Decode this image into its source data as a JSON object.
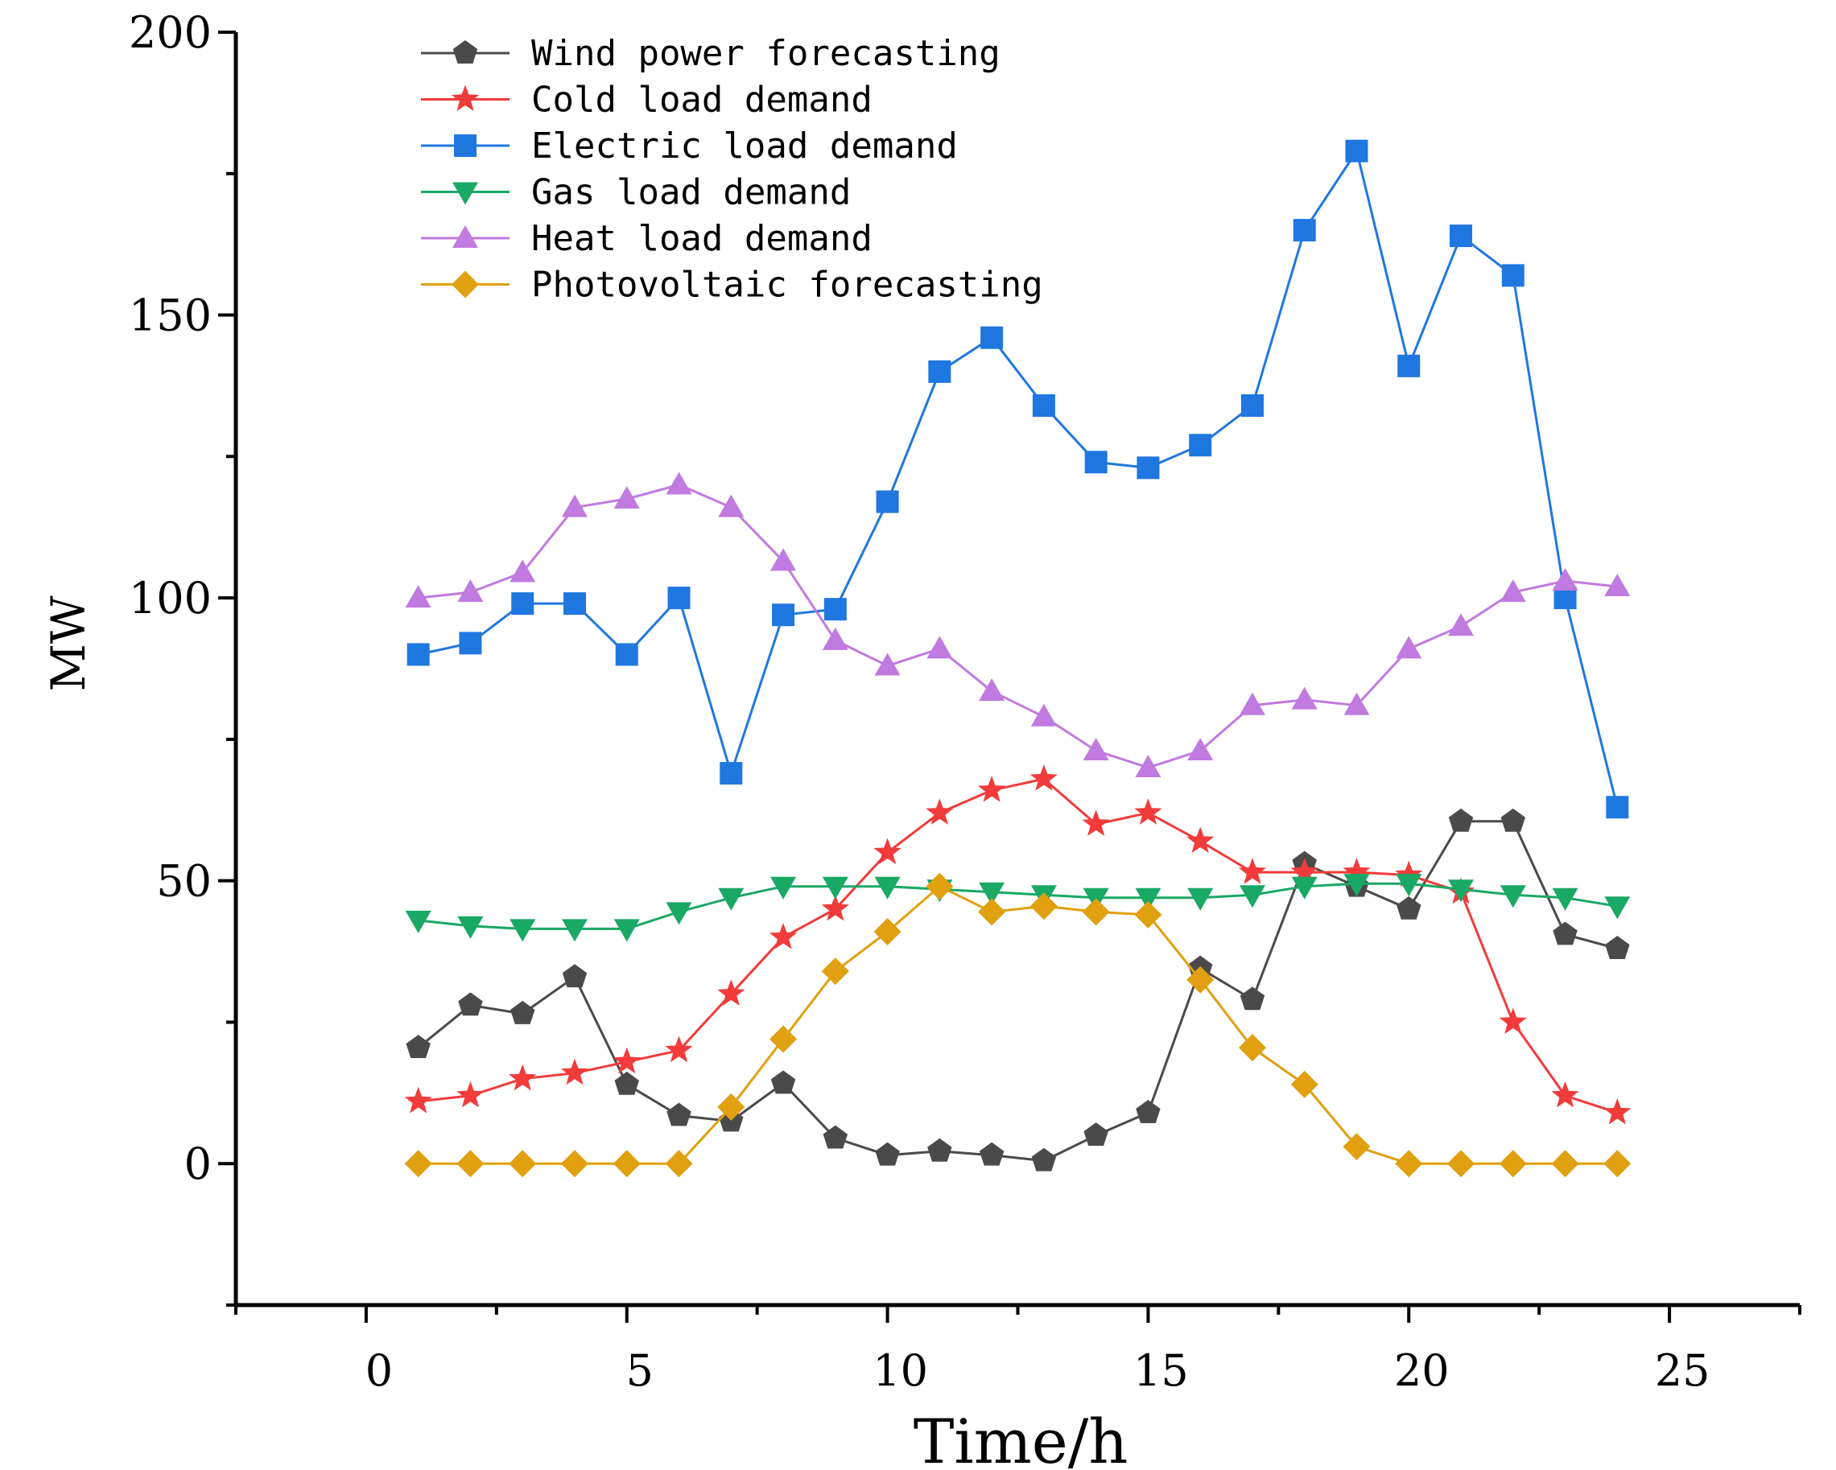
{
  "chart_data": {
    "type": "line",
    "title": "",
    "xlabel": "Time/h",
    "ylabel": "MW",
    "xlim": [
      -2.5,
      27.5
    ],
    "ylim": [
      -25,
      200
    ],
    "xticks": [
      0,
      5,
      10,
      15,
      20,
      25
    ],
    "yticks": [
      0,
      50,
      100,
      150,
      200
    ],
    "x_tick_labels": [
      "0",
      "5",
      "10",
      "15",
      "20",
      "25"
    ],
    "y_tick_labels": [
      "0",
      "50",
      "100",
      "150",
      "200"
    ],
    "grid": false,
    "legend_position": "top-left",
    "x": [
      1,
      2,
      3,
      4,
      5,
      6,
      7,
      8,
      9,
      10,
      11,
      12,
      13,
      14,
      15,
      16,
      17,
      18,
      19,
      20,
      21,
      22,
      23,
      24
    ],
    "series": [
      {
        "name": "Wind power forecasting",
        "color": "#4a4a4a",
        "marker": "pentagon",
        "values": [
          20.5,
          28,
          26.5,
          33,
          14,
          8.5,
          7.5,
          14.2,
          4.5,
          1.5,
          2.2,
          1.5,
          0.5,
          5,
          9,
          34.5,
          29,
          53,
          49,
          45,
          60.5,
          60.5,
          40.5,
          38
        ]
      },
      {
        "name": "Cold load demand",
        "color": "#f23b3b",
        "marker": "star",
        "values": [
          11,
          12,
          15,
          16,
          18,
          20,
          30,
          40,
          45,
          55,
          62,
          66,
          68,
          60,
          62,
          57,
          51.5,
          51.5,
          51.5,
          51,
          48,
          25,
          12,
          9
        ]
      },
      {
        "name": "Electric load demand",
        "color": "#1f77e0",
        "marker": "square",
        "values": [
          90,
          92,
          99,
          99,
          90,
          100,
          69,
          97,
          98,
          117,
          140,
          146,
          134,
          124,
          123,
          127,
          134,
          165,
          179,
          141,
          164,
          157,
          100,
          63
        ]
      },
      {
        "name": "Gas load demand",
        "color": "#1aa865",
        "marker": "triangle-down",
        "values": [
          43,
          42,
          41.5,
          41.5,
          41.5,
          44.5,
          47,
          49,
          49,
          49,
          48.5,
          48,
          47.5,
          47,
          47,
          47,
          47.5,
          49,
          49.5,
          49.5,
          48.5,
          47.5,
          47,
          45.5
        ]
      },
      {
        "name": "Heat load demand",
        "color": "#c07ae0",
        "marker": "triangle-up",
        "values": [
          100,
          101,
          104.5,
          116,
          117.5,
          120,
          116,
          106.5,
          92.5,
          88,
          91,
          83.5,
          79,
          73,
          70,
          73,
          81,
          82,
          81,
          91,
          95,
          101,
          103,
          102
        ]
      },
      {
        "name": "Photovoltaic forecasting",
        "color": "#e0a00f",
        "marker": "diamond",
        "values": [
          0,
          0,
          0,
          0,
          0,
          0,
          10,
          22,
          34,
          41,
          49,
          44.5,
          45.5,
          44.5,
          44,
          32.5,
          20.5,
          14,
          3,
          0,
          0,
          0,
          0,
          0
        ]
      }
    ]
  }
}
